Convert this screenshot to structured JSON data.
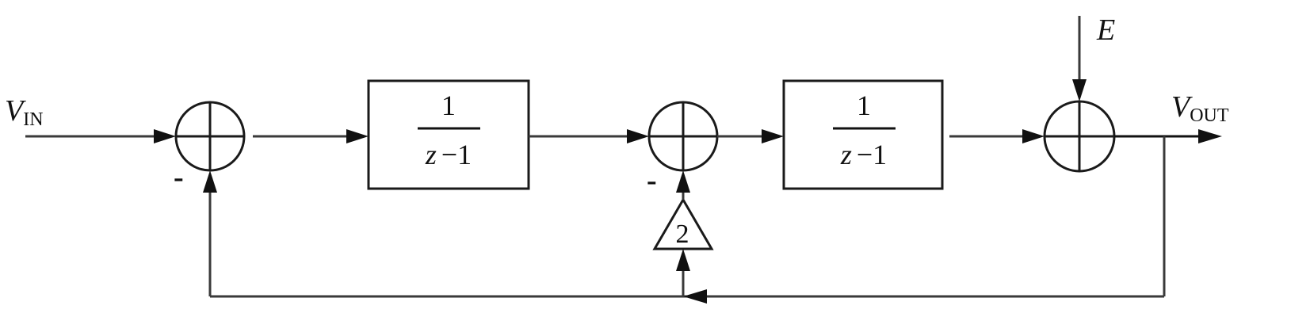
{
  "signals": {
    "input_main": "V",
    "input_sub": "IN",
    "output_main": "V",
    "output_sub": "OUT",
    "disturbance": "E"
  },
  "blocks": [
    {
      "numerator": "1",
      "denominator_var": "z",
      "denominator_rest": "−1"
    },
    {
      "numerator": "1",
      "denominator_var": "z",
      "denominator_rest": "−1"
    }
  ],
  "gain": {
    "value": "2"
  },
  "summing_junctions": [
    {
      "negative_input_sign": "-"
    },
    {
      "negative_input_sign": "-"
    },
    {}
  ]
}
